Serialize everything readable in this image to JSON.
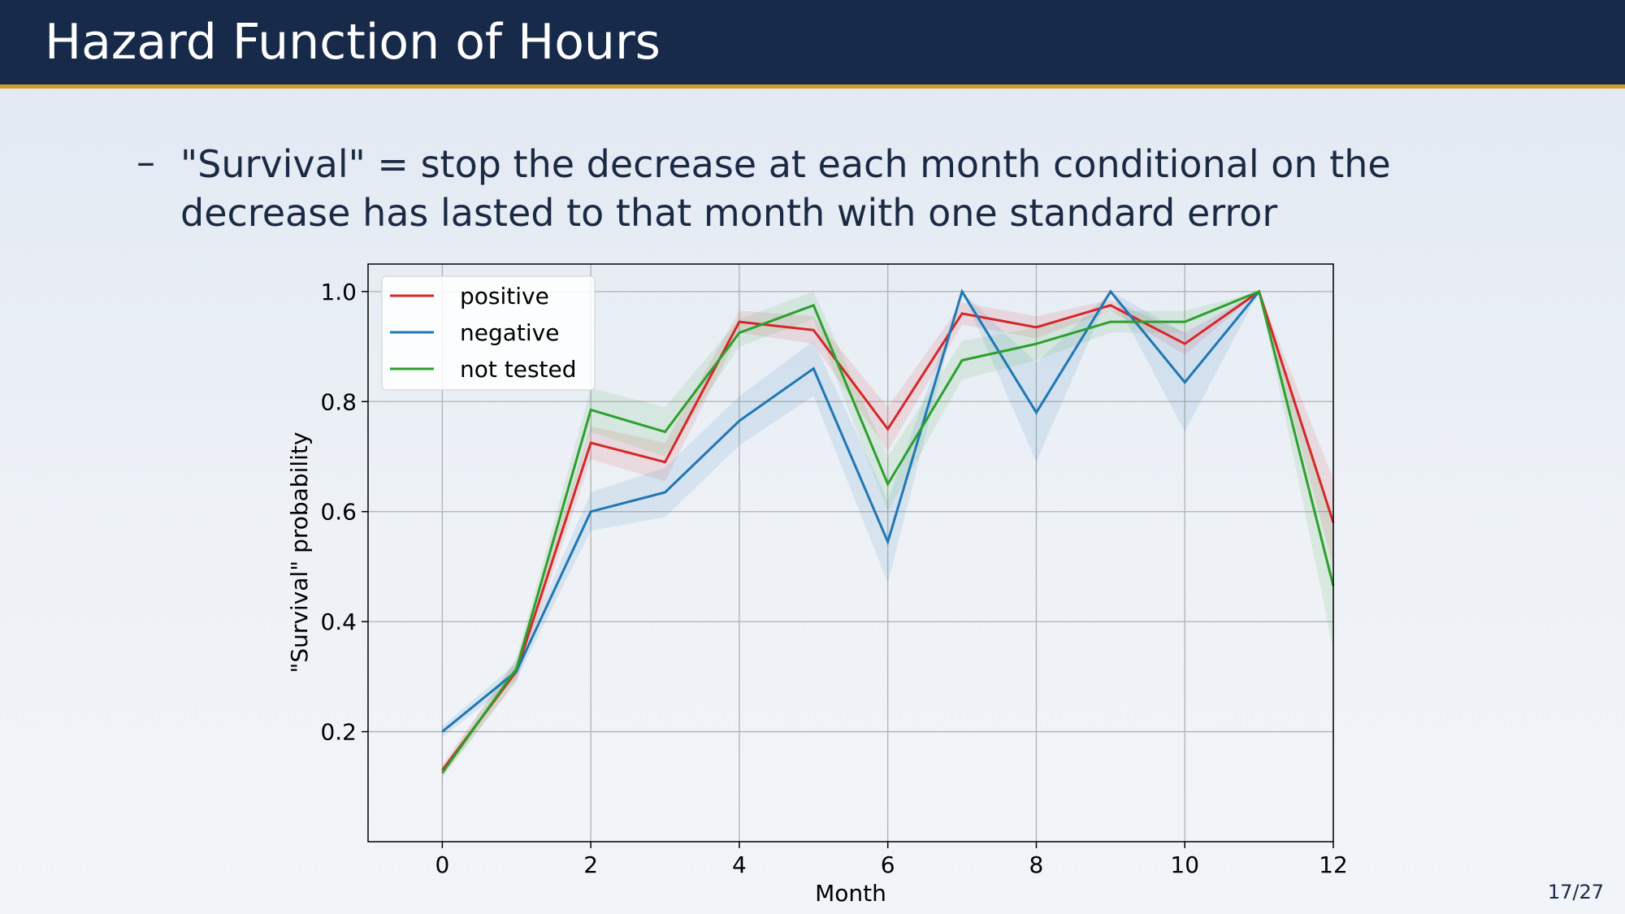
{
  "slide": {
    "title": "Hazard Function of Hours",
    "bullet_dash": "–",
    "bullet_line1": "\"Survival\" = stop the decrease at each month conditional on the",
    "bullet_line2": "decrease has lasted to that month with one standard error",
    "page_current": "17",
    "page_separator": "/",
    "page_total": "27"
  },
  "colors": {
    "header_bg": "#172a4a",
    "header_rule": "#d29a2a",
    "positive": "#d62728",
    "negative": "#1f77b4",
    "not_tested": "#2ca02c"
  },
  "chart_data": {
    "type": "line",
    "xlabel": "Month",
    "ylabel": "\"Survival\" probability",
    "xlim": [
      -1,
      12
    ],
    "ylim": [
      0.0,
      1.05
    ],
    "xticks": [
      0,
      2,
      4,
      6,
      8,
      10,
      12
    ],
    "yticks": [
      0.2,
      0.4,
      0.6,
      0.8,
      1.0
    ],
    "ytick_labels": [
      "0.2",
      "0.4",
      "0.6",
      "0.8",
      "1.0"
    ],
    "grid": true,
    "legend_position": "top-left",
    "x": [
      0,
      1,
      2,
      3,
      4,
      5,
      6,
      7,
      8,
      9,
      10,
      11,
      12
    ],
    "series": [
      {
        "name": "positive",
        "color": "#d62728",
        "values": [
          0.13,
          0.31,
          0.725,
          0.69,
          0.945,
          0.93,
          0.75,
          0.96,
          0.935,
          0.975,
          0.905,
          1.0,
          0.58
        ],
        "lower": [
          0.12,
          0.29,
          0.695,
          0.655,
          0.925,
          0.905,
          0.71,
          0.94,
          0.915,
          0.965,
          0.885,
          1.0,
          0.5
        ],
        "upper": [
          0.14,
          0.33,
          0.755,
          0.725,
          0.965,
          0.955,
          0.79,
          0.98,
          0.955,
          0.985,
          0.925,
          1.0,
          0.66
        ]
      },
      {
        "name": "negative",
        "color": "#1f77b4",
        "values": [
          0.2,
          0.31,
          0.6,
          0.635,
          0.765,
          0.86,
          0.545,
          1.0,
          0.78,
          1.0,
          0.835,
          1.0,
          null
        ],
        "lower": [
          0.19,
          0.295,
          0.565,
          0.59,
          0.72,
          0.81,
          0.47,
          1.0,
          0.69,
          1.0,
          0.745,
          1.0,
          null
        ],
        "upper": [
          0.21,
          0.325,
          0.635,
          0.68,
          0.81,
          0.91,
          0.62,
          1.0,
          0.87,
          1.0,
          0.925,
          1.0,
          null
        ]
      },
      {
        "name": "not tested",
        "color": "#2ca02c",
        "values": [
          0.125,
          0.315,
          0.785,
          0.745,
          0.925,
          0.975,
          0.65,
          0.875,
          0.905,
          0.945,
          0.945,
          1.0,
          0.465
        ],
        "lower": [
          0.115,
          0.295,
          0.745,
          0.7,
          0.9,
          0.95,
          0.6,
          0.84,
          0.875,
          0.925,
          0.925,
          1.0,
          0.35
        ],
        "upper": [
          0.135,
          0.335,
          0.825,
          0.79,
          0.95,
          1.0,
          0.7,
          0.91,
          0.935,
          0.965,
          0.965,
          1.0,
          0.58
        ]
      }
    ]
  }
}
